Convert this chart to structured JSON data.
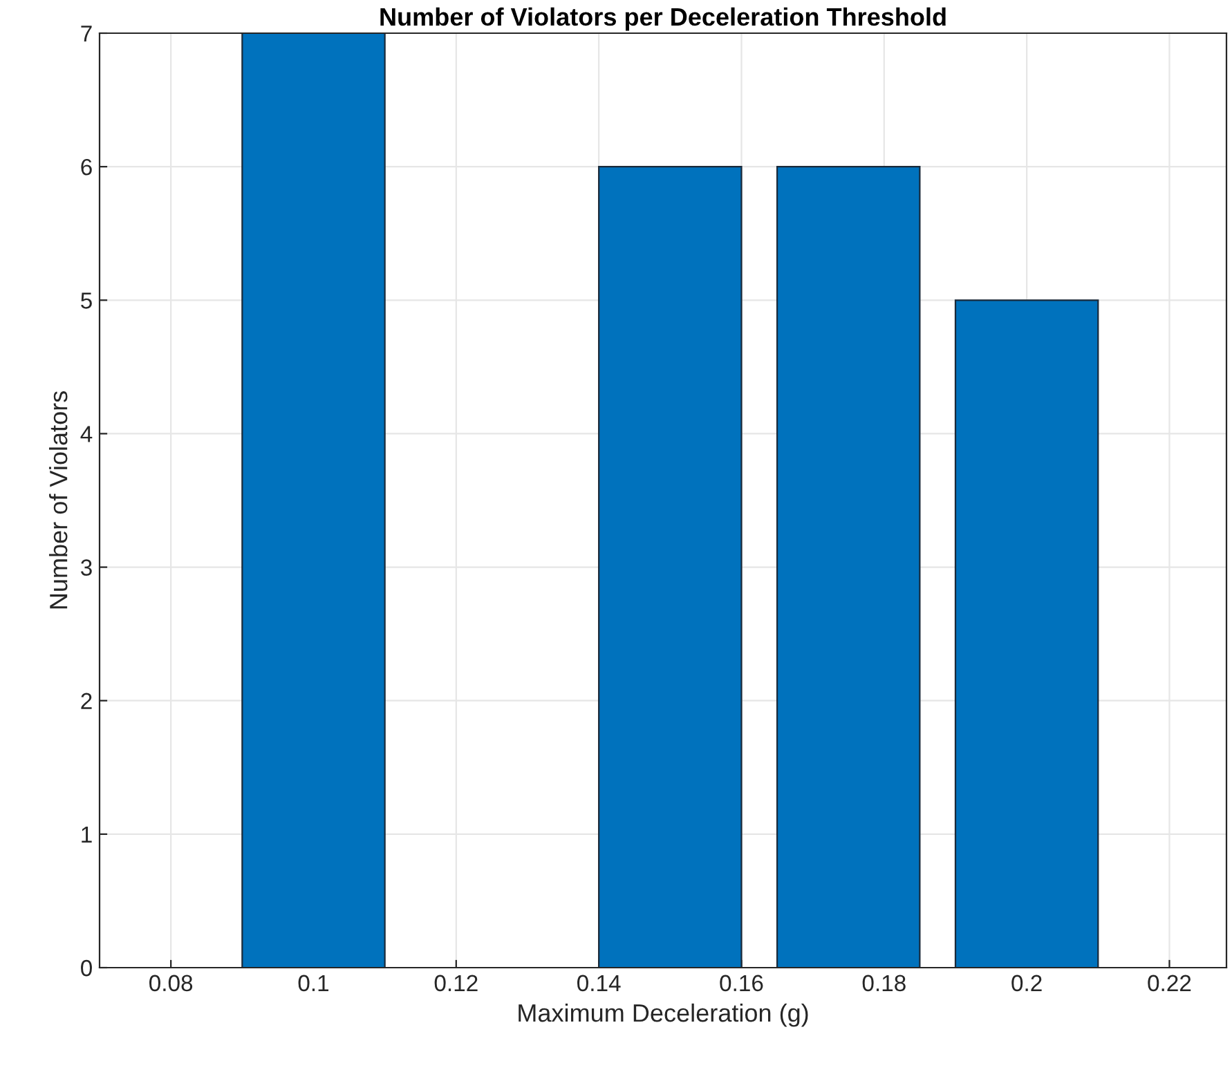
{
  "chart_data": {
    "type": "bar",
    "title": "Number of Violators per Deceleration Threshold",
    "xlabel": "Maximum Deceleration (g)",
    "ylabel": "Number of Violators",
    "x": [
      0.1,
      0.15,
      0.175,
      0.2
    ],
    "series": [
      {
        "color": "#0072bd",
        "values": [
          7,
          6,
          6,
          5
        ]
      }
    ],
    "xlim": [
      0.07,
      0.228
    ],
    "xticks": [
      0.08,
      0.1,
      0.12,
      0.14,
      0.16,
      0.18,
      0.2,
      0.22
    ],
    "ylim": [
      0,
      7
    ],
    "yticks": [
      0,
      1,
      2,
      3,
      4,
      5,
      6,
      7
    ],
    "grid": true,
    "legend": false
  }
}
